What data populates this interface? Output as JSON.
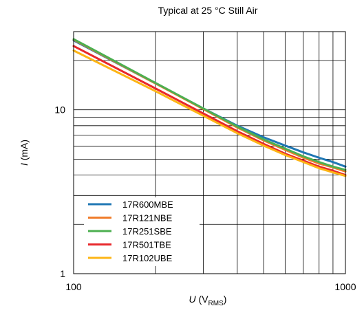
{
  "chart_data": {
    "type": "line",
    "title": "Typical at 25 °C Still Air",
    "xlabel": {
      "var": "U",
      "pre": " (V",
      "sub": "RMS",
      "post": ")"
    },
    "ylabel": {
      "var": "I",
      "rest": " (mA)"
    },
    "x_scale": "log",
    "y_scale": "log",
    "xlim": [
      100,
      1000
    ],
    "ylim": [
      1,
      30
    ],
    "x_ticks": [
      100,
      1000
    ],
    "x_tick_labels": [
      "100",
      "1000"
    ],
    "y_ticks": [
      1,
      10
    ],
    "y_tick_labels": [
      "1",
      "10"
    ],
    "grid": true,
    "legend_position": "bottom-left",
    "series": [
      {
        "name": "17R600MBE",
        "color": "#1f77b4",
        "x": [
          100,
          200,
          300,
          400,
          500,
          600,
          700,
          800,
          900,
          1000
        ],
        "y": [
          26.5,
          14.5,
          10.2,
          8.0,
          6.8,
          6.05,
          5.5,
          5.1,
          4.8,
          4.5
        ]
      },
      {
        "name": "17R121NBE",
        "color": "#f07c2a",
        "x": [
          100,
          200,
          300,
          400,
          500,
          600,
          700,
          800,
          900,
          1000
        ],
        "y": [
          26.8,
          14.5,
          10.1,
          7.8,
          6.5,
          5.7,
          5.1,
          4.7,
          4.45,
          4.2
        ]
      },
      {
        "name": "17R251SBE",
        "color": "#4caf50",
        "x": [
          100,
          200,
          300,
          400,
          500,
          600,
          700,
          800,
          900,
          1000
        ],
        "y": [
          27.0,
          14.6,
          10.2,
          7.9,
          6.6,
          5.8,
          5.2,
          4.8,
          4.5,
          4.3
        ]
      },
      {
        "name": "17R501TBE",
        "color": "#e8272b",
        "x": [
          100,
          200,
          300,
          400,
          500,
          600,
          700,
          800,
          900,
          1000
        ],
        "y": [
          24.5,
          13.5,
          9.5,
          7.4,
          6.2,
          5.4,
          4.9,
          4.5,
          4.25,
          4.0
        ]
      },
      {
        "name": "17R102UBE",
        "color": "#fdb515",
        "x": [
          100,
          200,
          300,
          400,
          500,
          600,
          700,
          800,
          900,
          1000
        ],
        "y": [
          23.0,
          13.0,
          9.2,
          7.2,
          6.05,
          5.3,
          4.8,
          4.4,
          4.15,
          3.95
        ]
      }
    ]
  }
}
